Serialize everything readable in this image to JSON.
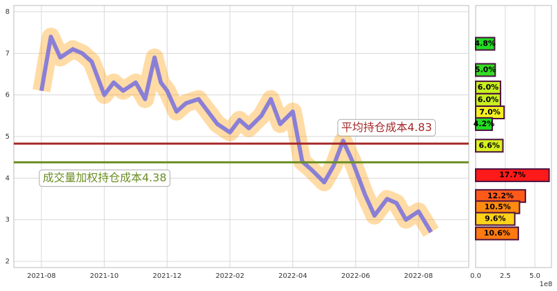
{
  "chart_data": [
    {
      "type": "line",
      "x": [
        0,
        0.3,
        0.6,
        1,
        1.3,
        1.6,
        2,
        2.3,
        2.6,
        3,
        3.3,
        3.6,
        3.8,
        4,
        4.3,
        4.6,
        5,
        5.3,
        5.6,
        6,
        6.3,
        6.6,
        7,
        7.3,
        7.6,
        8,
        8.3,
        8.6,
        9,
        9.3,
        9.6,
        9.9,
        10.3,
        10.6,
        11,
        11.3,
        11.6,
        12,
        12.4
      ],
      "series": [
        {
          "color": "#8a7fd6",
          "values": [
            6.1,
            7.4,
            6.9,
            7.1,
            7.0,
            6.8,
            6.0,
            6.3,
            6.1,
            6.3,
            5.9,
            6.9,
            6.3,
            6.1,
            5.6,
            5.8,
            5.9,
            5.6,
            5.3,
            5.1,
            5.4,
            5.2,
            5.5,
            5.9,
            5.3,
            5.6,
            4.4,
            4.2,
            3.9,
            4.3,
            4.9,
            4.4,
            3.6,
            3.1,
            3.5,
            3.4,
            3.0,
            3.2,
            2.7
          ]
        }
      ],
      "xlim": [
        -0.88,
        13.6
      ],
      "xticks": [
        {
          "value": 0,
          "label": "2021-08"
        },
        {
          "value": 2,
          "label": "2021-10"
        },
        {
          "value": 4,
          "label": "2021-12"
        },
        {
          "value": 6,
          "label": "2022-02"
        },
        {
          "value": 8,
          "label": "2022-04"
        },
        {
          "value": 10,
          "label": "2022-06"
        },
        {
          "value": 12,
          "label": "2022-08"
        }
      ],
      "ylim": [
        1.85,
        8.15
      ],
      "yticks": [
        2,
        3,
        4,
        5,
        6,
        7,
        8
      ],
      "grid": true,
      "hlines": [
        {
          "value": 4.83,
          "color": "#a52a2a",
          "label": "平均持仓成本4.83"
        },
        {
          "value": 4.38,
          "color": "#6b8e23",
          "label": "成交量加权持仓成本4.38"
        }
      ]
    },
    {
      "type": "hbar",
      "y": [
        7.23,
        6.6,
        6.18,
        5.88,
        5.58,
        5.3,
        4.78,
        4.07,
        3.57,
        3.3,
        3.02,
        2.67
      ],
      "values": [
        1.6,
        1.65,
        2.1,
        2.1,
        2.4,
        1.4,
        2.3,
        6.2,
        4.2,
        3.7,
        3.3,
        3.6
      ],
      "value_labels": [
        "4.8%",
        "5.0%",
        "6.0%",
        "6.0%",
        "7.0%",
        "4.2%",
        "6.6%",
        "17.7%",
        "12.2%",
        "10.5%",
        "9.6%",
        "10.6%"
      ],
      "colors": [
        "#22dd22",
        "#33dd22",
        "#c8f020",
        "#c8f020",
        "#f2f020",
        "#22dd22",
        "#d8f020",
        "#ff1a1a",
        "#ff5a1a",
        "#ff8a10",
        "#ffd21a",
        "#ff7a10"
      ],
      "xlim": [
        0,
        6.4
      ],
      "xticks": [
        {
          "value": 0,
          "label": "0.0"
        },
        2.5,
        {
          "value": 5,
          "label": "5.0"
        }
      ],
      "x_offset_label": "1e8",
      "ylim": [
        1.85,
        8.15
      ],
      "grid": true
    }
  ]
}
